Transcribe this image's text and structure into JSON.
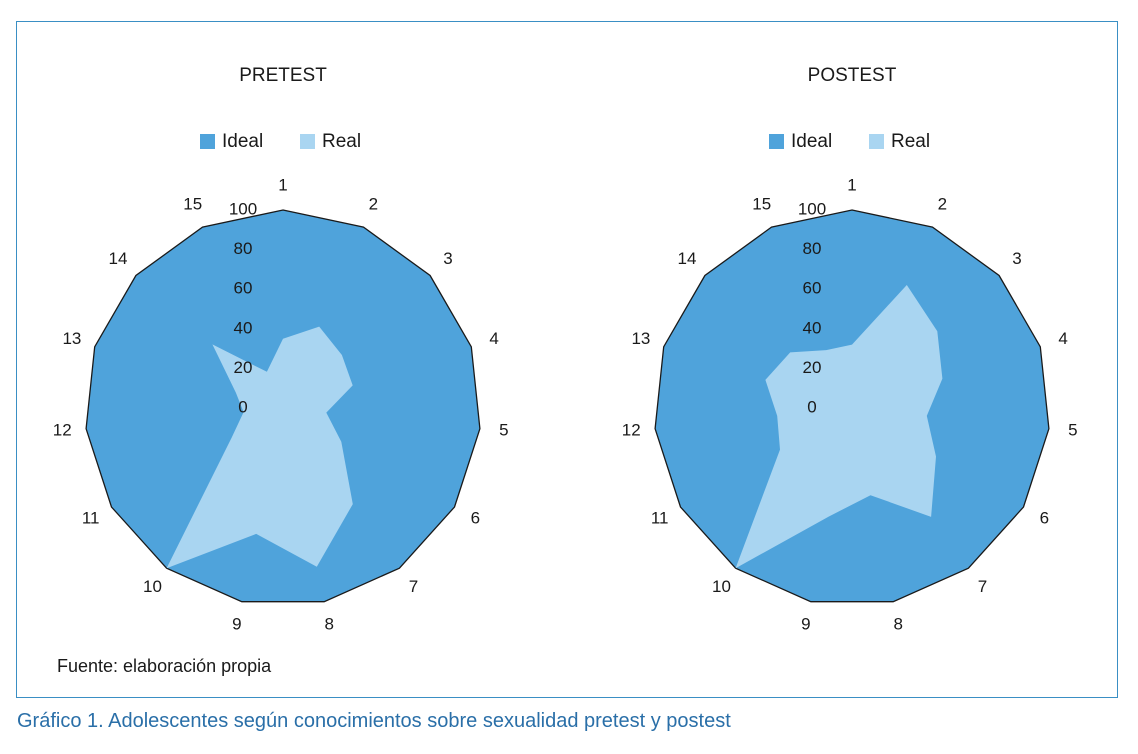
{
  "chart_data": [
    {
      "type": "radar",
      "title": "PRETEST",
      "axes": [
        "1",
        "2",
        "3",
        "4",
        "5",
        "6",
        "7",
        "8",
        "9",
        "10",
        "11",
        "12",
        "13",
        "14",
        "15"
      ],
      "rticks": [
        "0",
        "20",
        "40",
        "60",
        "80",
        "100"
      ],
      "rlim": [
        0,
        100
      ],
      "series": [
        {
          "name": "Ideal",
          "color": "#4fa3db",
          "values": [
            100,
            100,
            100,
            100,
            100,
            100,
            100,
            100,
            100,
            100,
            100,
            100,
            100,
            100,
            100
          ]
        },
        {
          "name": "Real",
          "color": "#a9d5f1",
          "values": [
            35,
            45,
            40,
            37,
            22,
            34,
            60,
            82,
            65,
            100,
            30,
            20,
            25,
            48,
            20
          ]
        }
      ],
      "legend": "top-center"
    },
    {
      "type": "radar",
      "title": "POSTEST",
      "axes": [
        "1",
        "2",
        "3",
        "4",
        "5",
        "6",
        "7",
        "8",
        "9",
        "10",
        "11",
        "12",
        "13",
        "14",
        "15"
      ],
      "rticks": [
        "0",
        "20",
        "40",
        "60",
        "80",
        "100"
      ],
      "rlim": [
        0,
        100
      ],
      "series": [
        {
          "name": "Ideal",
          "color": "#4fa3db",
          "values": [
            100,
            100,
            100,
            100,
            100,
            100,
            100,
            100,
            100,
            100,
            100,
            100,
            100,
            100,
            100
          ]
        },
        {
          "name": "Real",
          "color": "#a9d5f1",
          "values": [
            32,
            68,
            58,
            48,
            38,
            49,
            68,
            45,
            56,
            100,
            42,
            38,
            46,
            42,
            32
          ]
        }
      ],
      "legend": "top-center"
    }
  ],
  "source": "Fuente: elaboración propia",
  "caption": {
    "number": "Gráfico 1.",
    "text": "Adolescentes según conocimientos sobre sexualidad pretest y postest"
  }
}
